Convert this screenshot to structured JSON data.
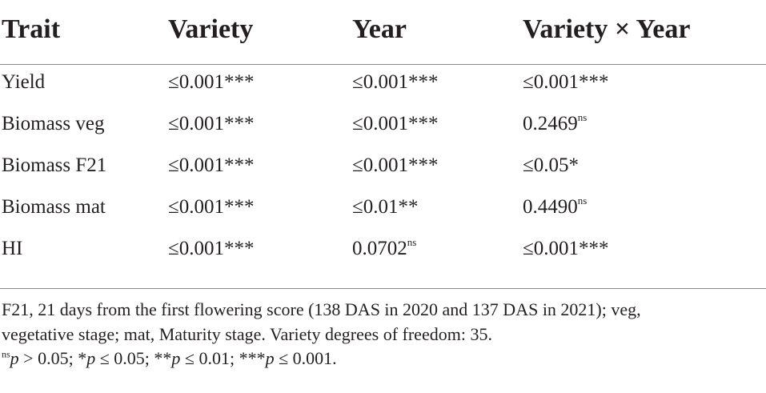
{
  "table": {
    "headers": [
      "Trait",
      "Variety",
      "Year",
      "Variety × Year"
    ],
    "rows": [
      [
        {
          "text": "Yield",
          "sup": ""
        },
        {
          "text": "≤0.001***",
          "sup": ""
        },
        {
          "text": "≤0.001***",
          "sup": ""
        },
        {
          "text": "≤0.001***",
          "sup": ""
        }
      ],
      [
        {
          "text": "Biomass veg",
          "sup": ""
        },
        {
          "text": "≤0.001***",
          "sup": ""
        },
        {
          "text": "≤0.001***",
          "sup": ""
        },
        {
          "text": "0.2469",
          "sup": "ns"
        }
      ],
      [
        {
          "text": "Biomass F21",
          "sup": ""
        },
        {
          "text": "≤0.001***",
          "sup": ""
        },
        {
          "text": "≤0.001***",
          "sup": ""
        },
        {
          "text": "≤0.05*",
          "sup": ""
        }
      ],
      [
        {
          "text": "Biomass mat",
          "sup": ""
        },
        {
          "text": "≤0.001***",
          "sup": ""
        },
        {
          "text": "≤0.01**",
          "sup": ""
        },
        {
          "text": "0.4490",
          "sup": "ns"
        }
      ],
      [
        {
          "text": "HI",
          "sup": ""
        },
        {
          "text": "≤0.001***",
          "sup": ""
        },
        {
          "text": "0.0702",
          "sup": "ns"
        },
        {
          "text": "≤0.001***",
          "sup": ""
        }
      ]
    ]
  },
  "footnotes": {
    "line1": "F21, 21 days from the first flowering score (138 DAS in 2020 and 137 DAS in 2021); veg,",
    "line2": "vegetative stage; mat, Maturity stage. Variety degrees of freedom: 35.",
    "line3_parts": [
      {
        "sup": "ns",
        "italic": "p",
        "text": " > 0.05; *"
      },
      {
        "sup": "",
        "italic": "p",
        "text": " ≤ 0.05; **"
      },
      {
        "sup": "",
        "italic": "p",
        "text": " ≤ 0.01; ***"
      },
      {
        "sup": "",
        "italic": "p",
        "text": " ≤ 0.001."
      }
    ]
  }
}
